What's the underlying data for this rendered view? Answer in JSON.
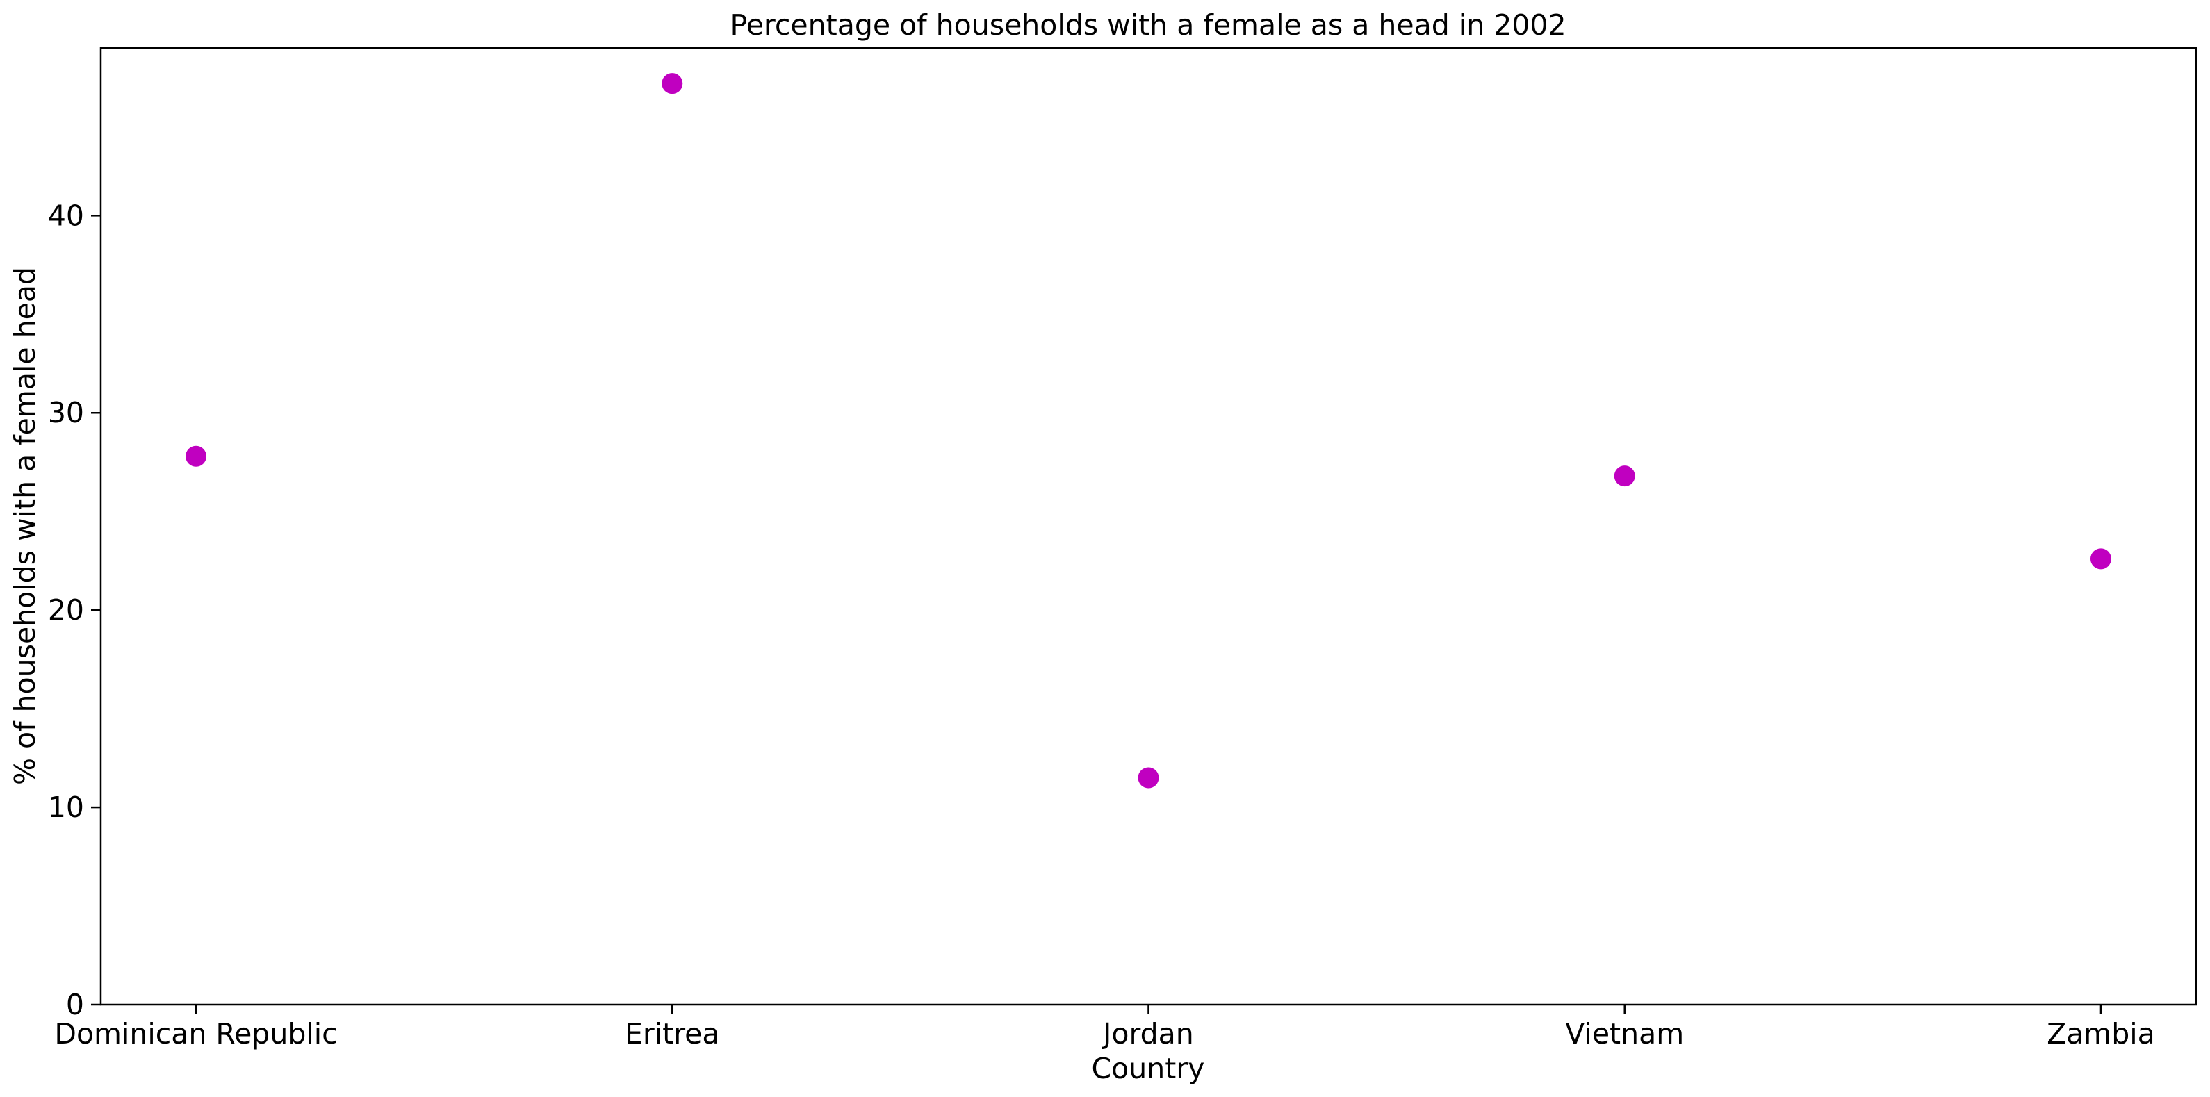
{
  "chart_data": {
    "type": "scatter",
    "title": "Percentage of households with a female as a head in 2002",
    "xlabel": "Country",
    "ylabel": "% of households with a female head",
    "categories": [
      "Dominican Republic",
      "Eritrea",
      "Jordan",
      "Vietnam",
      "Zambia"
    ],
    "values": [
      27.8,
      46.7,
      11.5,
      26.8,
      22.6
    ],
    "ylim": [
      0,
      48.5
    ],
    "yticks": [
      "0",
      "10",
      "20",
      "30",
      "40"
    ],
    "grid": false,
    "marker_color": "#c000c0"
  }
}
